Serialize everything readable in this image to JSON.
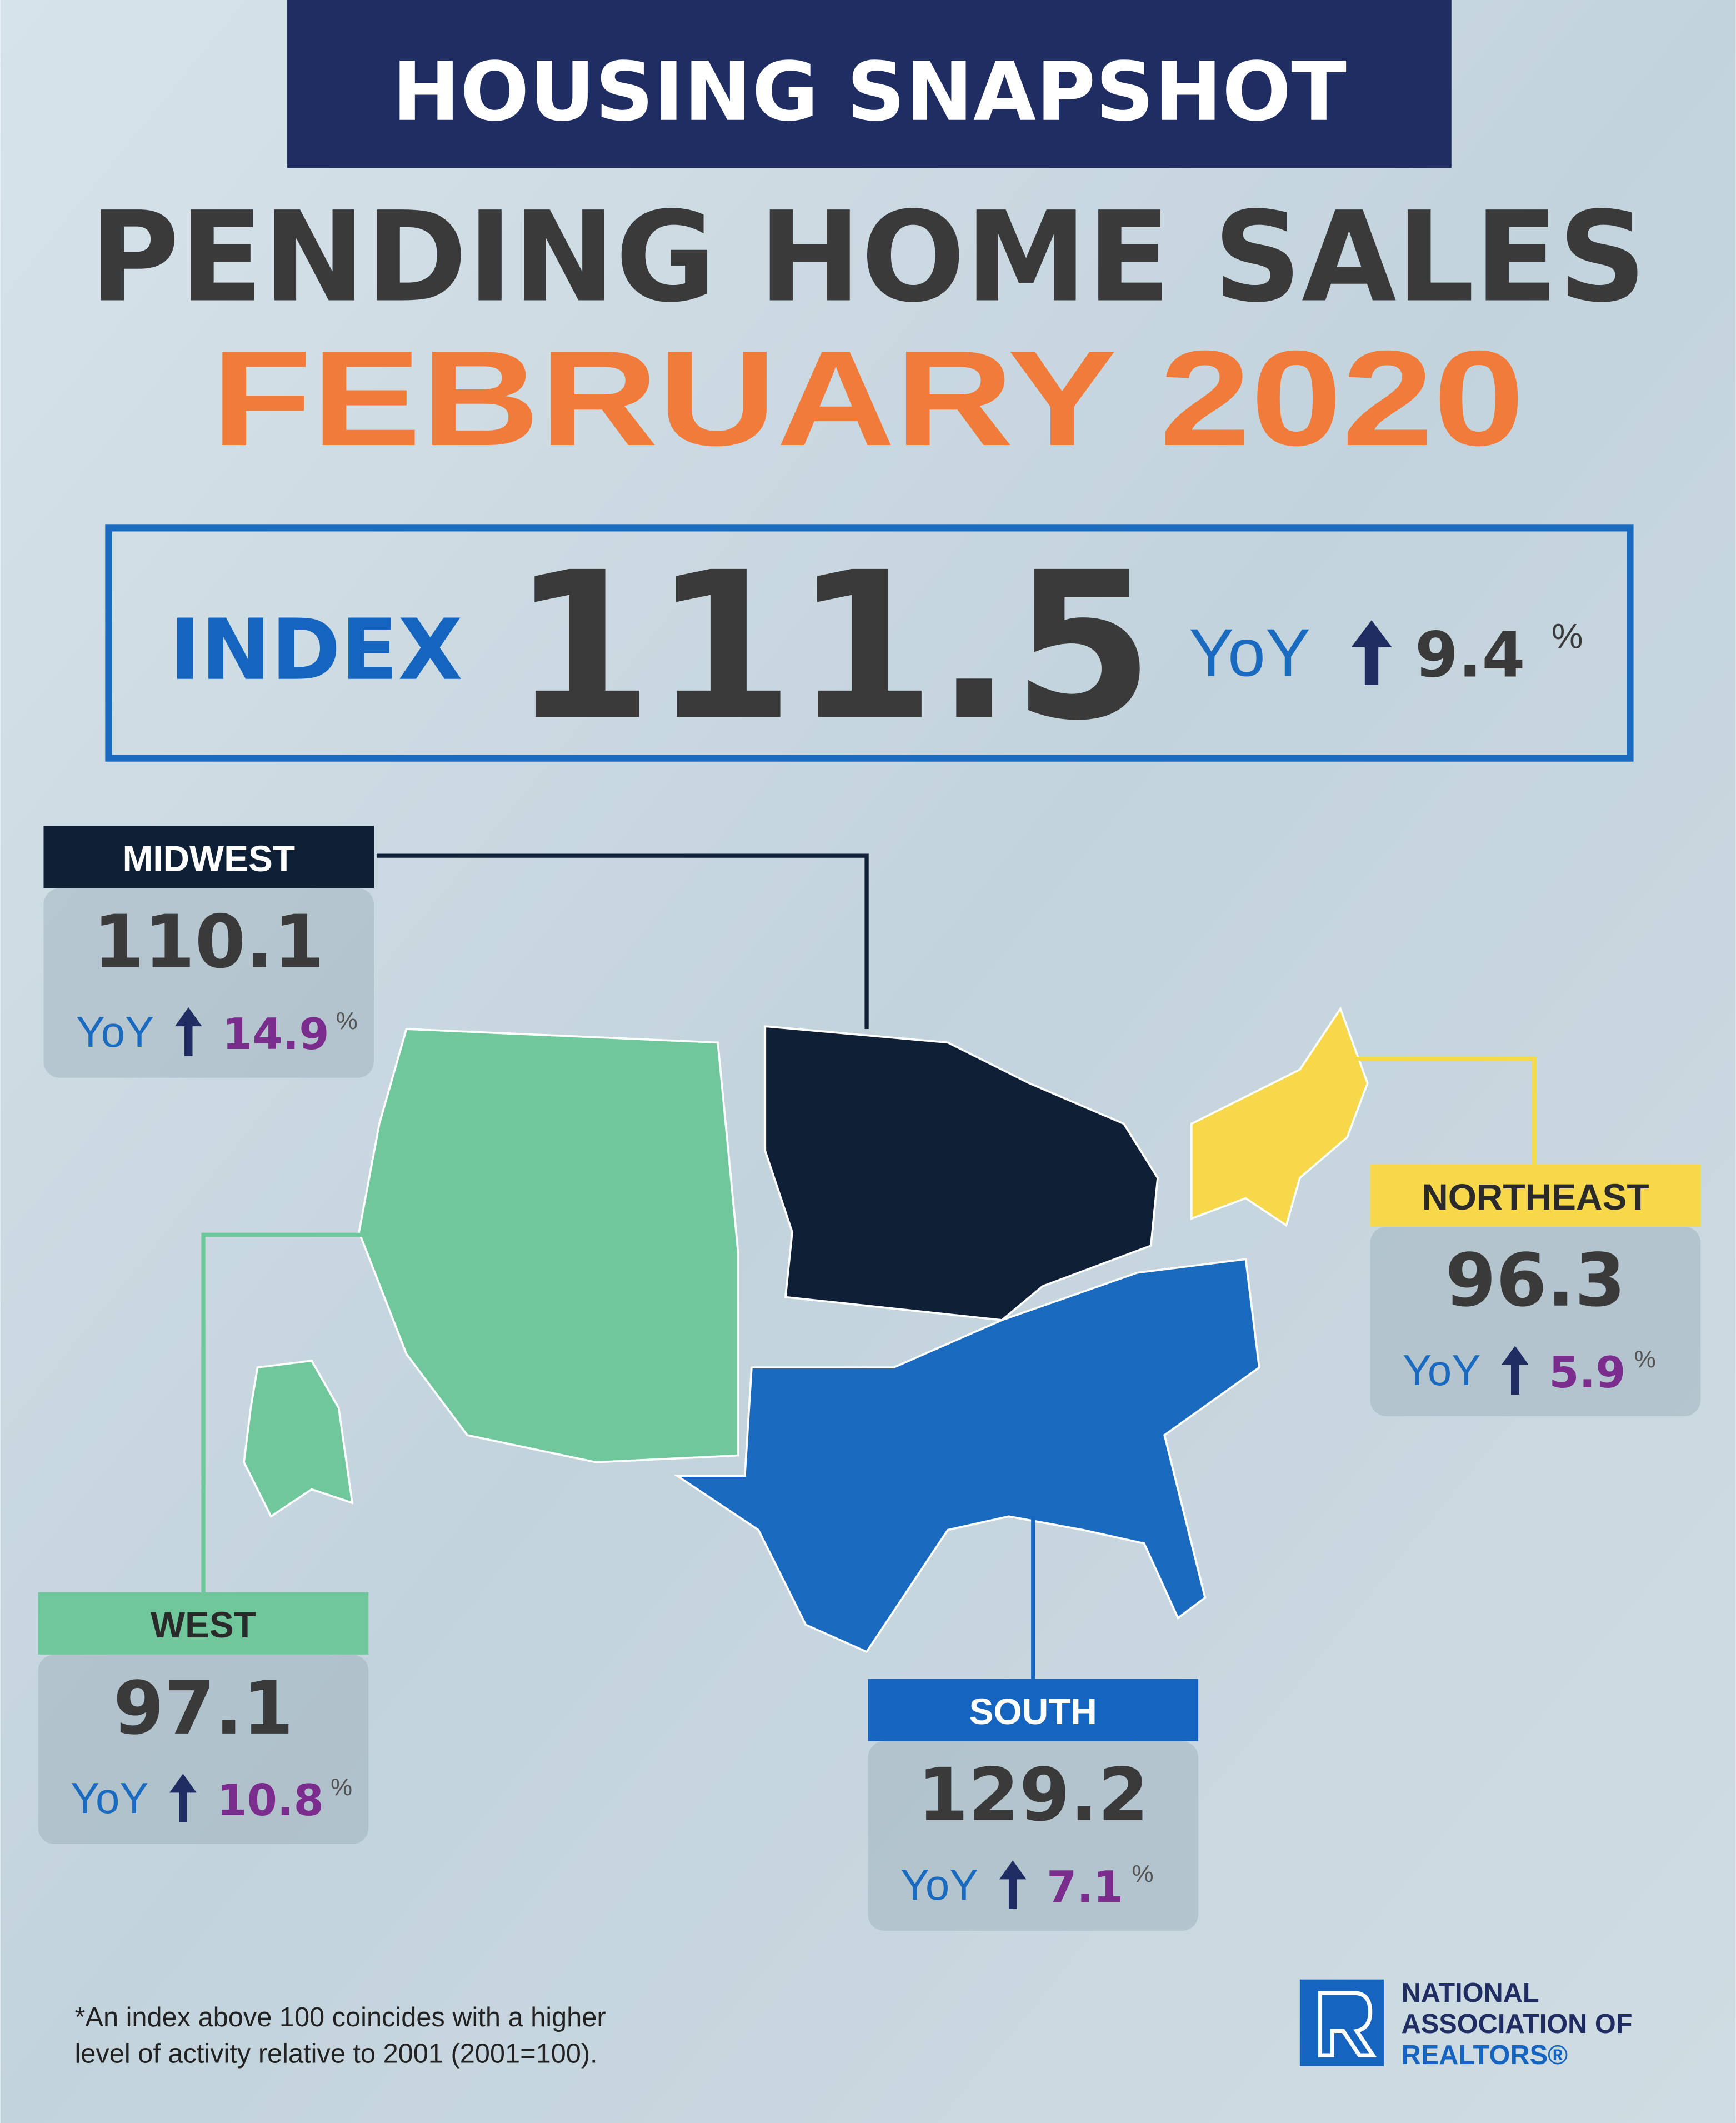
{
  "header": {
    "banner": "HOUSING SNAPSHOT",
    "title": "PENDING HOME SALES",
    "period": "FEBRUARY 2020"
  },
  "index": {
    "label": "INDEX",
    "value": 111.5,
    "footnote_mark": "*",
    "yoy_label": "YoY",
    "yoy_change": 9.4,
    "unit": "%"
  },
  "regions": [
    {
      "name": "MIDWEST",
      "index": 110.1,
      "yoy_label": "YoY",
      "yoy_change": 14.9,
      "unit": "%"
    },
    {
      "name": "NORTHEAST",
      "index": 96.3,
      "yoy_label": "YoY",
      "yoy_change": 5.9,
      "unit": "%"
    },
    {
      "name": "WEST",
      "index": 97.1,
      "yoy_label": "YoY",
      "yoy_change": 10.8,
      "unit": "%"
    },
    {
      "name": "SOUTH",
      "index": 129.2,
      "yoy_label": "YoY",
      "yoy_change": 7.1,
      "unit": "%"
    }
  ],
  "footnote": [
    "*An index above 100 coincides with a higher",
    "level of activity relative to 2001 (2001=100)."
  ],
  "logo": {
    "lines": [
      "NATIONAL",
      "ASSOCIATION OF",
      "REALTORS®"
    ]
  }
}
